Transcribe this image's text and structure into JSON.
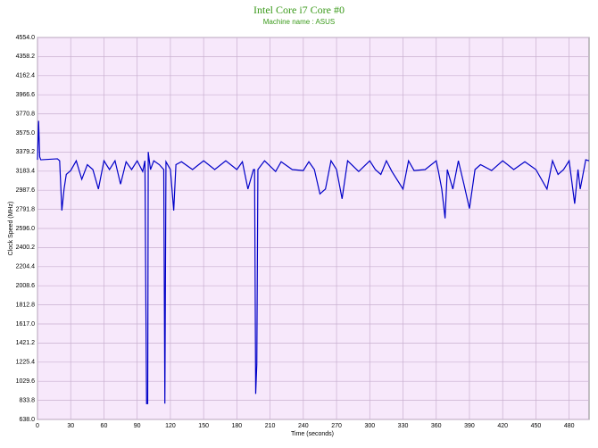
{
  "chart_data": {
    "type": "line",
    "title": "Intel Core i7 Core #0",
    "subtitle": "Machine name : ASUS",
    "x_label": "Time (seconds)",
    "y_label": "Clock Speed (MHz)",
    "color": "#0000c8",
    "grid": true,
    "xlim": [
      0,
      498
    ],
    "xticks": [
      0,
      30,
      60,
      90,
      120,
      150,
      180,
      210,
      240,
      270,
      300,
      330,
      360,
      390,
      420,
      450,
      480
    ],
    "ylim": [
      638,
      4554
    ],
    "yticks": [
      {
        "value": 638,
        "label": "638.0"
      },
      833.8,
      1029.6,
      1225.4,
      1421.2,
      {
        "value": 1617,
        "label": "1617.0"
      },
      1812.8,
      2008.6,
      2204.4,
      2400.2,
      {
        "value": 2596,
        "label": "2596.0"
      },
      2791.8,
      2987.6,
      3183.4,
      3379.2,
      {
        "value": 3575,
        "label": "3575.0"
      },
      3770.8,
      3966.6,
      4162.4,
      4358.2,
      {
        "value": 4554,
        "label": "4554.0"
      }
    ],
    "x": [
      0,
      1,
      2,
      3,
      18,
      20,
      22,
      24,
      26,
      30,
      35,
      40,
      45,
      50,
      55,
      60,
      65,
      70,
      75,
      80,
      85,
      90,
      95,
      97,
      98,
      98.5,
      99.5,
      100,
      102,
      105,
      110,
      114,
      115,
      116,
      120,
      123,
      125,
      130,
      140,
      150,
      160,
      170,
      180,
      185,
      190,
      195,
      196,
      197,
      198,
      199,
      205,
      215,
      220,
      230,
      240,
      245,
      250,
      255,
      260,
      265,
      270,
      275,
      280,
      290,
      300,
      305,
      310,
      315,
      320,
      330,
      335,
      340,
      350,
      360,
      362,
      365,
      368,
      370,
      375,
      380,
      385,
      390,
      395,
      400,
      410,
      420,
      430,
      440,
      450,
      460,
      465,
      470,
      475,
      480,
      485,
      488,
      490,
      495,
      498
    ],
    "values": [
      3300,
      3700,
      3330,
      3300,
      3310,
      3290,
      2780,
      3000,
      3150,
      3190,
      3290,
      3100,
      3250,
      3200,
      3000,
      3290,
      3200,
      3290,
      3050,
      3280,
      3200,
      3290,
      3180,
      3290,
      1600,
      800,
      800,
      3380,
      3200,
      3290,
      3250,
      3200,
      800,
      3280,
      3200,
      2780,
      3250,
      3280,
      3200,
      3290,
      3200,
      3290,
      3200,
      3280,
      3000,
      3200,
      3200,
      900,
      1200,
      3200,
      3290,
      3180,
      3280,
      3200,
      3190,
      3280,
      3200,
      2950,
      3000,
      3290,
      3200,
      2900,
      3290,
      3180,
      3290,
      3200,
      3150,
      3290,
      3180,
      3000,
      3290,
      3190,
      3200,
      3290,
      3180,
      3000,
      2700,
      3200,
      3000,
      3290,
      3050,
      2800,
      3200,
      3250,
      3190,
      3290,
      3200,
      3280,
      3200,
      3000,
      3290,
      3150,
      3200,
      3290,
      2850,
      3200,
      3000,
      3300,
      3290
    ]
  }
}
